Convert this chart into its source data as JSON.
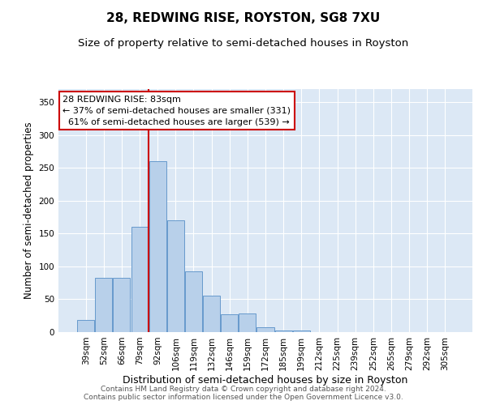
{
  "title": "28, REDWING RISE, ROYSTON, SG8 7XU",
  "subtitle": "Size of property relative to semi-detached houses in Royston",
  "xlabel": "Distribution of semi-detached houses by size in Royston",
  "ylabel": "Number of semi-detached properties",
  "categories": [
    "39sqm",
    "52sqm",
    "66sqm",
    "79sqm",
    "92sqm",
    "106sqm",
    "119sqm",
    "132sqm",
    "146sqm",
    "159sqm",
    "172sqm",
    "185sqm",
    "199sqm",
    "212sqm",
    "225sqm",
    "239sqm",
    "252sqm",
    "265sqm",
    "279sqm",
    "292sqm",
    "305sqm"
  ],
  "values": [
    18,
    83,
    83,
    160,
    260,
    170,
    93,
    55,
    27,
    28,
    7,
    3,
    3,
    0,
    0,
    0,
    0,
    0,
    0,
    0,
    0
  ],
  "bar_color": "#b8d0ea",
  "bar_edge_color": "#6699cc",
  "red_line_x": 3.5,
  "annotation_line1": "28 REDWING RISE: 83sqm",
  "annotation_line2": "← 37% of semi-detached houses are smaller (331)",
  "annotation_line3": "  61% of semi-detached houses are larger (539) →",
  "annotation_box_color": "#ffffff",
  "annotation_box_edge": "#cc0000",
  "red_line_color": "#cc0000",
  "ylim": [
    0,
    370
  ],
  "yticks": [
    0,
    50,
    100,
    150,
    200,
    250,
    300,
    350
  ],
  "background_color": "#dce8f5",
  "grid_color": "#ffffff",
  "title_fontsize": 11,
  "subtitle_fontsize": 9.5,
  "xlabel_fontsize": 9,
  "ylabel_fontsize": 8.5,
  "tick_fontsize": 7.5,
  "footer_text": "Contains HM Land Registry data © Crown copyright and database right 2024.\nContains public sector information licensed under the Open Government Licence v3.0.",
  "footer_fontsize": 6.5
}
